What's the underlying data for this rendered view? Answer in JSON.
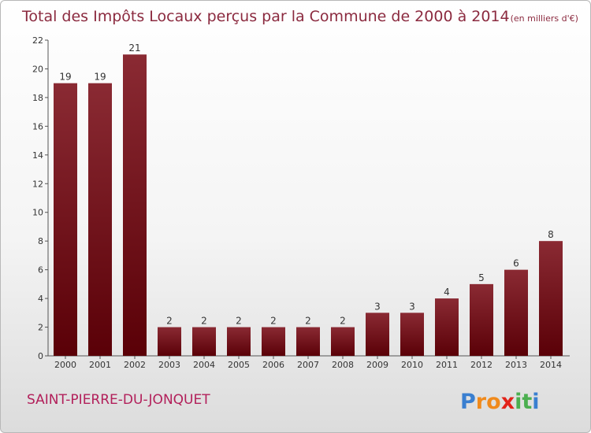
{
  "chart_data": {
    "type": "bar",
    "title": "Total des Impôts Locaux perçus par la Commune de 2000 à 2014",
    "subtitle": "(en milliers d'€)",
    "categories": [
      "2000",
      "2001",
      "2002",
      "2003",
      "2004",
      "2005",
      "2006",
      "2007",
      "2008",
      "2009",
      "2010",
      "2011",
      "2012",
      "2013",
      "2014"
    ],
    "values": [
      19,
      19,
      21,
      2,
      2,
      2,
      2,
      2,
      2,
      3,
      3,
      4,
      5,
      6,
      8
    ],
    "ylim": [
      0,
      22
    ],
    "yticks": [
      0,
      2,
      4,
      6,
      8,
      10,
      12,
      14,
      16,
      18,
      20,
      22
    ],
    "grid": false,
    "bar_color": "#6b0f17"
  },
  "commune_name": "SAINT-PIERRE-DU-JONQUET",
  "logo": {
    "letters": [
      "P",
      "r",
      "o",
      "x",
      "i",
      "t",
      "i"
    ],
    "colors": [
      "#3a7fd0",
      "#f08a1c",
      "#f08a1c",
      "#e2231a",
      "#4caf50",
      "#4caf50",
      "#3a7fd0"
    ]
  }
}
